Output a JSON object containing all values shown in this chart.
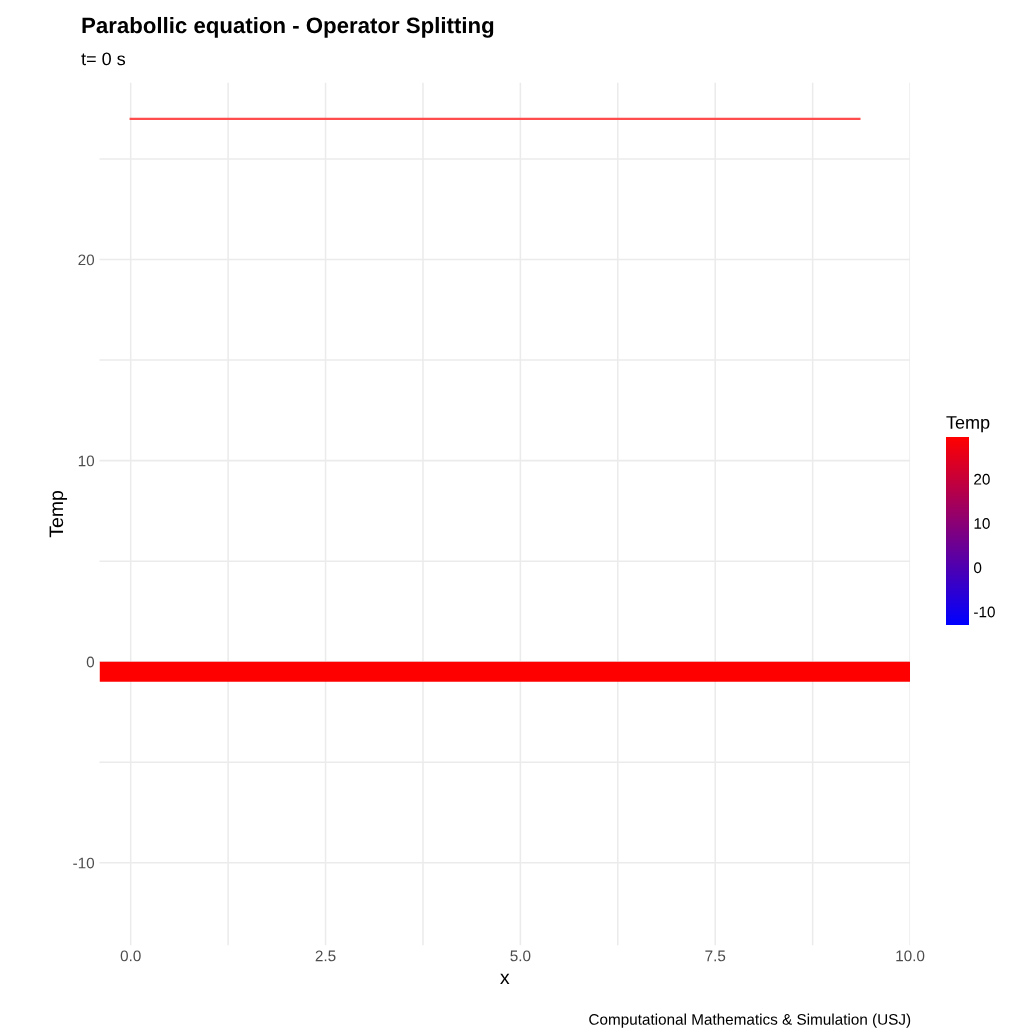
{
  "chart_data": {
    "type": "line",
    "title": "Parabollic equation - Operator Splitting",
    "subtitle": "t= 0 s",
    "xlabel": "x",
    "ylabel": "Temp",
    "clabel": "Temp",
    "annotations": [
      "Computational Mathematics & Simulation (USJ)"
    ],
    "series": [
      {
        "color": "#ff4d4d",
        "x": [
          0,
          9.35
        ],
        "values": [
          27,
          27
        ]
      }
    ],
    "bands": [
      {
        "axis": "y",
        "from": -1,
        "to": 0,
        "color": "#ff0000"
      }
    ],
    "clim": [
      -13,
      29.5
    ],
    "cticks": [
      -10,
      0,
      10,
      20
    ],
    "colors": [
      "#0000ff",
      "#ff0000"
    ],
    "xlim": [
      -0.4,
      10.0
    ],
    "xticks": [
      {
        "value": 0,
        "label": "0.0"
      },
      {
        "value": 1.25,
        "label": null
      },
      {
        "value": 2.5,
        "label": "2.5"
      },
      {
        "value": 3.75,
        "label": null
      },
      {
        "value": 5,
        "label": "5.0"
      },
      {
        "value": 6.25,
        "label": null
      },
      {
        "value": 7.5,
        "label": "7.5"
      },
      {
        "value": 8.75,
        "label": null
      },
      {
        "value": 10,
        "label": "10.0"
      }
    ],
    "ylim": [
      -14.1,
      28.8
    ],
    "yticks": [
      {
        "value": -10,
        "label": "-10"
      },
      {
        "value": -5,
        "label": null
      },
      0,
      {
        "value": 5,
        "label": null
      },
      10,
      {
        "value": 15,
        "label": null
      },
      20,
      {
        "value": 25,
        "label": null
      }
    ],
    "grid": true,
    "legend": false
  }
}
